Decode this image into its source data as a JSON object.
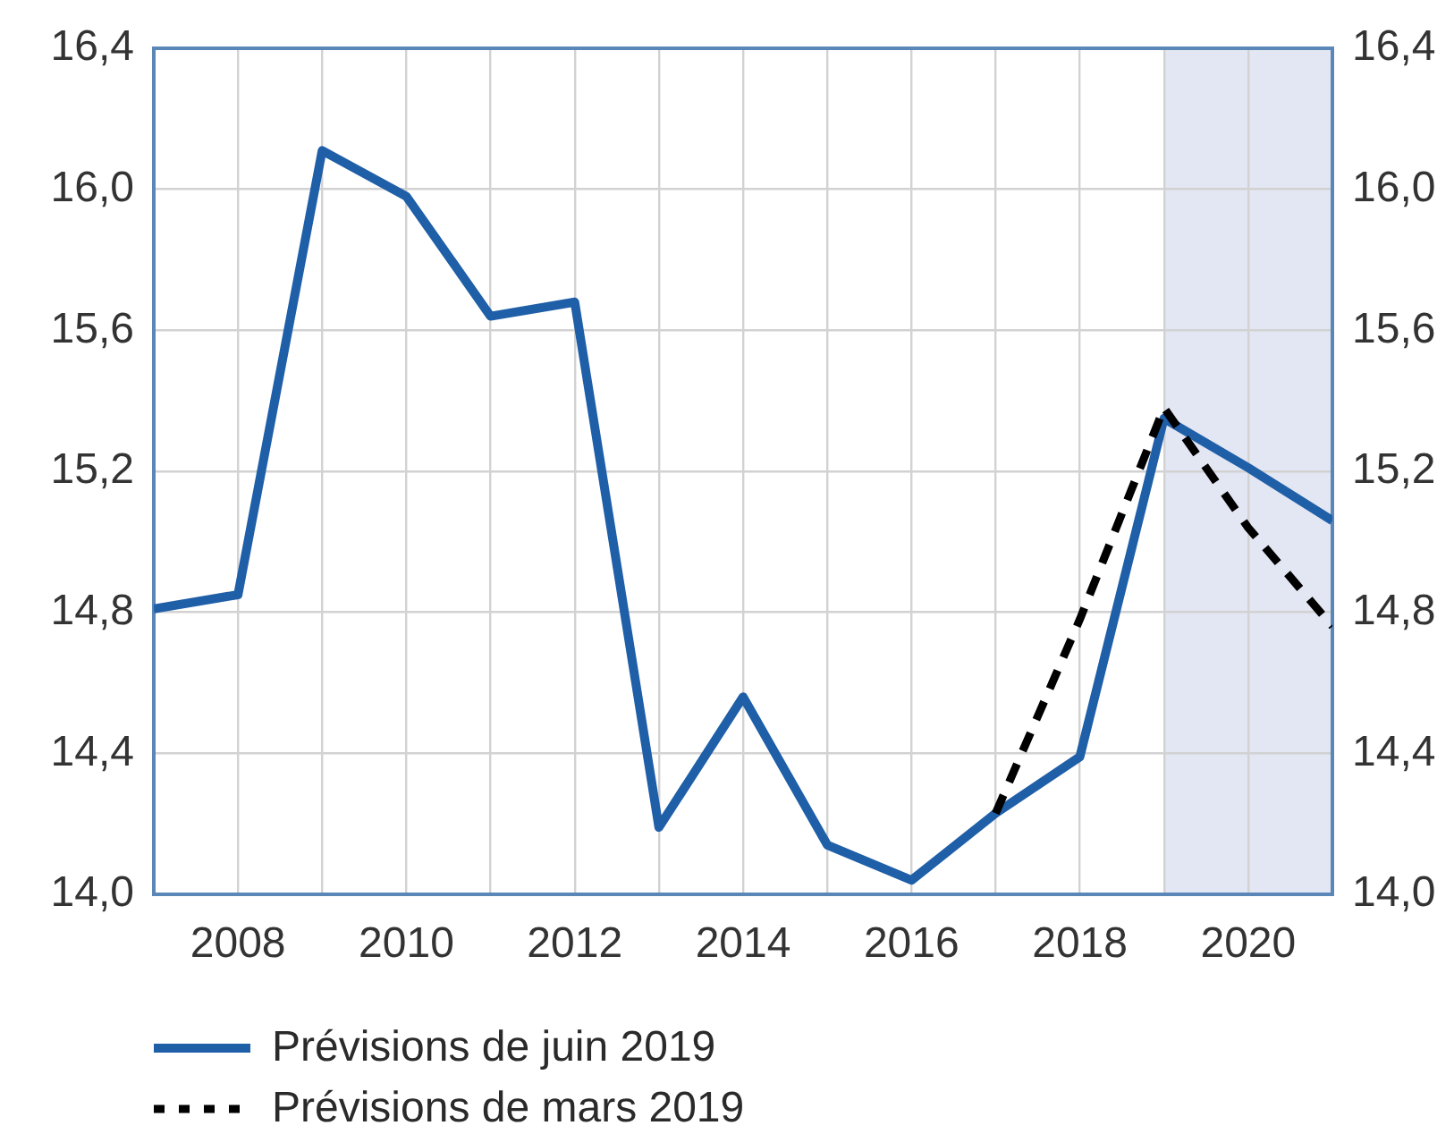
{
  "chart_data": {
    "type": "line",
    "x": [
      2007,
      2008,
      2009,
      2010,
      2011,
      2012,
      2013,
      2014,
      2015,
      2016,
      2017,
      2018,
      2019,
      2020,
      2021
    ],
    "series": [
      {
        "name": "Prévisions de juin 2019",
        "color": "#1f5fa8",
        "line_style": "solid",
        "values": [
          14.81,
          14.85,
          16.11,
          15.98,
          15.64,
          15.68,
          14.19,
          14.56,
          14.14,
          14.04,
          14.23,
          14.39,
          15.35,
          15.21,
          15.06
        ]
      },
      {
        "name": "Prévisions de mars 2019",
        "color": "#000000",
        "line_style": "dashed",
        "x": [
          2017,
          2018,
          2019,
          2020,
          2021
        ],
        "values": [
          14.23,
          14.78,
          15.38,
          15.04,
          14.76
        ]
      }
    ],
    "xlim": [
      2007,
      2021
    ],
    "xticks": [
      2008,
      {
        "value": 2009,
        "label": null
      },
      2010,
      {
        "value": 2011,
        "label": null
      },
      2012,
      {
        "value": 2013,
        "label": null
      },
      2014,
      {
        "value": 2015,
        "label": null
      },
      2016,
      {
        "value": 2017,
        "label": null
      },
      2018,
      {
        "value": 2019,
        "label": null
      },
      2020
    ],
    "ylim": [
      14.0,
      16.4
    ],
    "yticks": [
      {
        "value": 14.0,
        "label": "14,0"
      },
      {
        "value": 14.4,
        "label": "14,4"
      },
      {
        "value": 14.8,
        "label": "14,8"
      },
      {
        "value": 15.2,
        "label": "15,2"
      },
      {
        "value": 15.6,
        "label": "15,6"
      },
      {
        "value": 16.0,
        "label": "16,0"
      },
      {
        "value": 16.4,
        "label": "16,4"
      }
    ],
    "y2lim": [
      14.0,
      16.4
    ],
    "y2ticks": [
      {
        "value": 14.0,
        "label": "14,0"
      },
      {
        "value": 14.4,
        "label": "14,4"
      },
      {
        "value": 14.8,
        "label": "14,8"
      },
      {
        "value": 15.2,
        "label": "15,2"
      },
      {
        "value": 15.6,
        "label": "15,6"
      },
      {
        "value": 16.0,
        "label": "16,0"
      },
      {
        "value": 16.4,
        "label": "16,4"
      }
    ],
    "bands": [
      {
        "axis": "x",
        "from": 2019,
        "to": 2021,
        "color": "#e3e6f3"
      }
    ],
    "grid": true,
    "legend": "bottom left"
  }
}
